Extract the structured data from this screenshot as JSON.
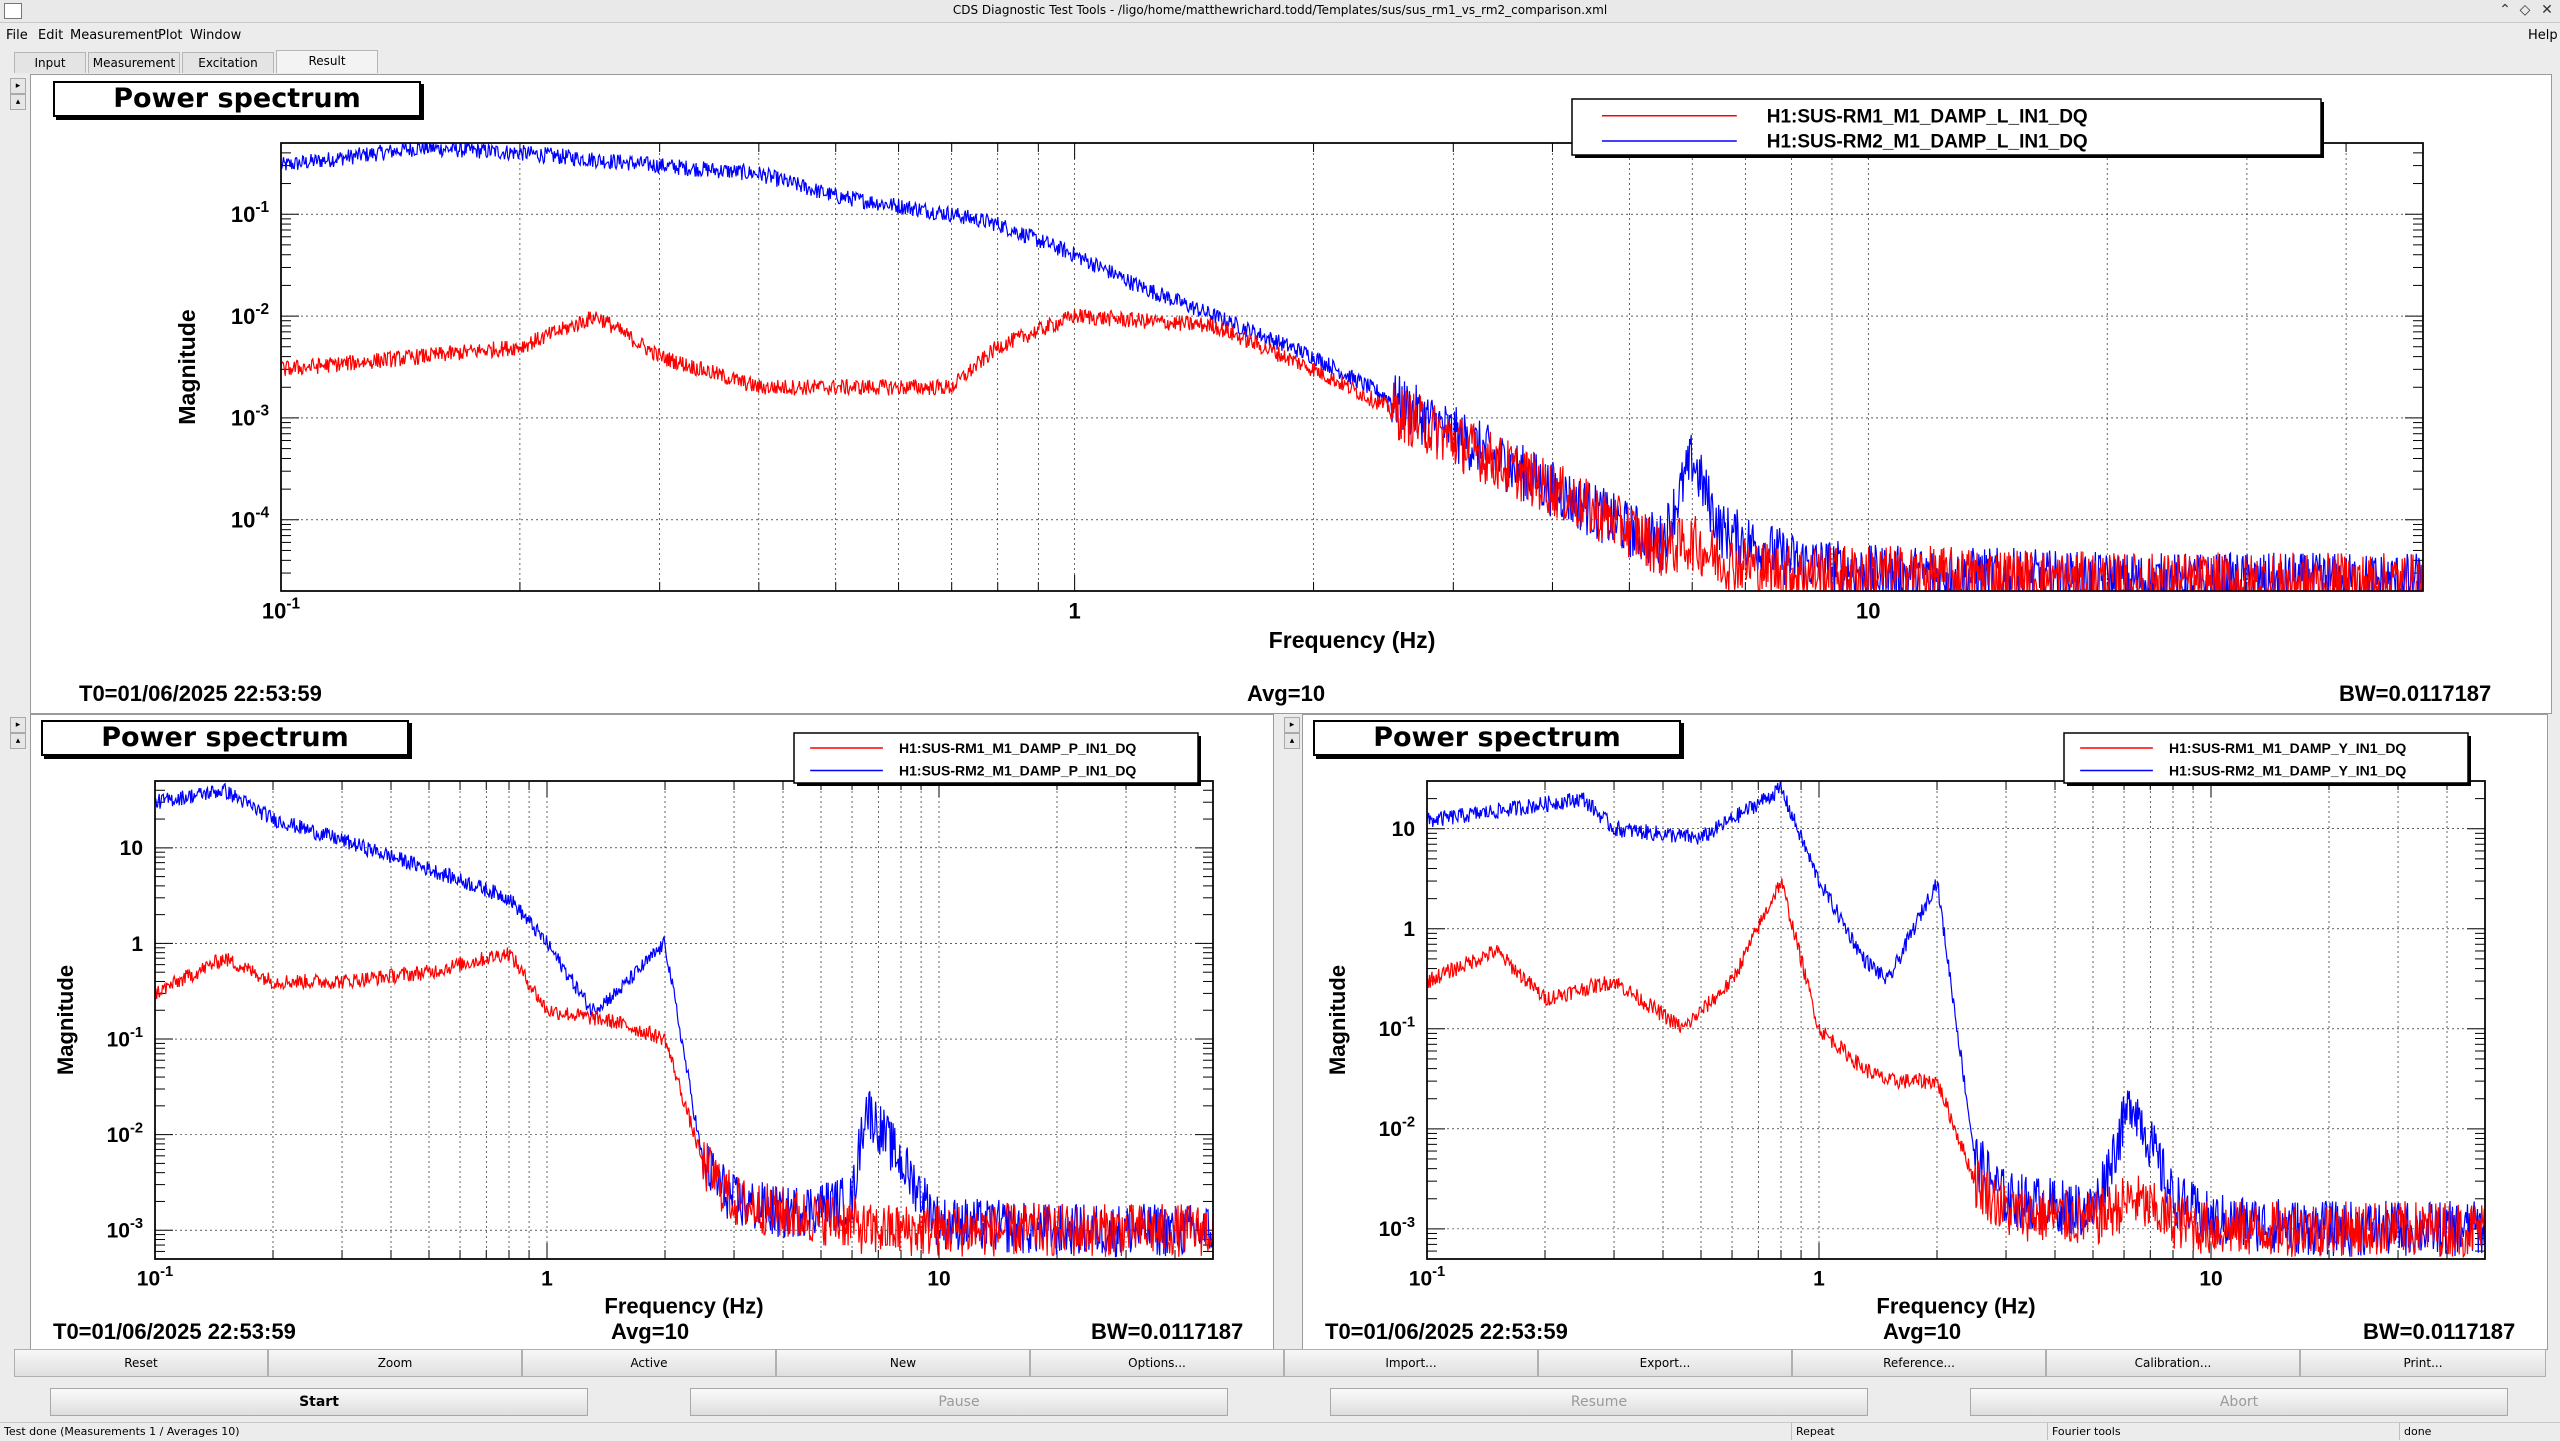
{
  "window": {
    "title": "CDS Diagnostic Test Tools - /ligo/home/matthewrichard.todd/Templates/sus/sus_rm1_vs_rm2_comparison.xml",
    "help": "Help"
  },
  "menu": [
    {
      "label": "File"
    },
    {
      "label": "Edit"
    },
    {
      "label": "Measurement"
    },
    {
      "label": "Plot"
    },
    {
      "label": "Window"
    }
  ],
  "tabs": [
    {
      "label": "Input"
    },
    {
      "label": "Measurement"
    },
    {
      "label": "Excitation"
    },
    {
      "label": "Result"
    }
  ],
  "plots": {
    "top": {
      "title": "Power spectrum",
      "ylabel": "Magnitude",
      "xlabel": "Frequency (Hz)",
      "t0": "T0=01/06/2025 22:53:59",
      "avg": "Avg=10",
      "bw": "BW=0.0117187",
      "yticks": [
        "10^-4",
        "10^-3",
        "10^-2",
        "10^-1"
      ],
      "xticks": [
        "10^-1",
        "1",
        "10"
      ],
      "legend": [
        {
          "name": "H1:SUS-RM1_M1_DAMP_L_IN1_DQ",
          "color": "#ff0000"
        },
        {
          "name": "H1:SUS-RM2_M1_DAMP_L_IN1_DQ",
          "color": "#0000ff"
        }
      ]
    },
    "left": {
      "title": "Power spectrum",
      "ylabel": "Magnitude",
      "xlabel": "Frequency (Hz)",
      "t0": "T0=01/06/2025 22:53:59",
      "avg": "Avg=10",
      "bw": "BW=0.0117187",
      "yticks": [
        "10^-3",
        "10^-2",
        "10^-1",
        "1",
        "10"
      ],
      "xticks": [
        "10^-1",
        "1",
        "10"
      ],
      "legend": [
        {
          "name": "H1:SUS-RM1_M1_DAMP_P_IN1_DQ",
          "color": "#ff0000"
        },
        {
          "name": "H1:SUS-RM2_M1_DAMP_P_IN1_DQ",
          "color": "#0000ff"
        }
      ]
    },
    "right": {
      "title": "Power spectrum",
      "ylabel": "Magnitude",
      "xlabel": "Frequency (Hz)",
      "t0": "T0=01/06/2025 22:53:59",
      "avg": "Avg=10",
      "bw": "BW=0.0117187",
      "yticks": [
        "10^-3",
        "10^-2",
        "10^-1",
        "1",
        "10"
      ],
      "xticks": [
        "10^-1",
        "1",
        "10"
      ],
      "legend": [
        {
          "name": "H1:SUS-RM1_M1_DAMP_Y_IN1_DQ",
          "color": "#ff0000"
        },
        {
          "name": "H1:SUS-RM2_M1_DAMP_Y_IN1_DQ",
          "color": "#0000ff"
        }
      ]
    }
  },
  "chart_data": [
    {
      "type": "line",
      "title": "Power spectrum",
      "xlabel": "Frequency (Hz)",
      "ylabel": "Magnitude",
      "xscale": "log",
      "yscale": "log",
      "xlim": [
        0.1,
        50
      ],
      "ylim": [
        2e-05,
        0.5
      ],
      "grid": true,
      "legend": "top-right",
      "series": [
        {
          "name": "H1:SUS-RM1_M1_DAMP_L_IN1_DQ",
          "color": "#ff0000",
          "x": [
            0.1,
            0.15,
            0.2,
            0.25,
            0.3,
            0.4,
            0.5,
            0.7,
            0.8,
            1,
            1.5,
            2,
            3,
            4,
            5,
            5.5,
            6,
            6.5,
            8,
            10,
            15,
            20,
            30,
            50
          ],
          "y": [
            0.003,
            0.004,
            0.005,
            0.01,
            0.004,
            0.002,
            0.002,
            0.002,
            0.005,
            0.01,
            0.008,
            0.003,
            0.0006,
            0.0002,
            8e-05,
            5e-05,
            6e-05,
            4e-05,
            3e-05,
            3e-05,
            2.8e-05,
            2.5e-05,
            2.5e-05,
            2.5e-05
          ]
        },
        {
          "name": "H1:SUS-RM2_M1_DAMP_L_IN1_DQ",
          "color": "#0000ff",
          "x": [
            0.1,
            0.15,
            0.2,
            0.3,
            0.4,
            0.5,
            0.7,
            0.8,
            1,
            1.2,
            1.5,
            2,
            3,
            4,
            5,
            5.5,
            6,
            6.5,
            8,
            10,
            15,
            20,
            30,
            50
          ],
          "y": [
            0.3,
            0.45,
            0.4,
            0.3,
            0.25,
            0.15,
            0.1,
            0.08,
            0.04,
            0.02,
            0.01,
            0.004,
            0.0007,
            0.0002,
            8e-05,
            6e-05,
            0.0004,
            8e-05,
            4e-05,
            3e-05,
            2.8e-05,
            2.5e-05,
            2.5e-05,
            2.5e-05
          ]
        }
      ]
    },
    {
      "type": "line",
      "title": "Power spectrum",
      "xlabel": "Frequency (Hz)",
      "ylabel": "Magnitude",
      "xscale": "log",
      "yscale": "log",
      "xlim": [
        0.1,
        50
      ],
      "ylim": [
        0.0005,
        50
      ],
      "grid": true,
      "legend": "top-right",
      "series": [
        {
          "name": "H1:SUS-RM1_M1_DAMP_P_IN1_DQ",
          "color": "#ff0000",
          "x": [
            0.1,
            0.15,
            0.2,
            0.3,
            0.5,
            0.8,
            1,
            1.5,
            2,
            2.5,
            3,
            4,
            6,
            6.5,
            10,
            20,
            50
          ],
          "y": [
            0.3,
            0.7,
            0.4,
            0.4,
            0.5,
            0.8,
            0.2,
            0.15,
            0.1,
            0.005,
            0.002,
            0.0015,
            0.0012,
            0.001,
            0.001,
            0.001,
            0.001
          ]
        },
        {
          "name": "H1:SUS-RM2_M1_DAMP_P_IN1_DQ",
          "color": "#0000ff",
          "x": [
            0.1,
            0.15,
            0.2,
            0.3,
            0.5,
            0.8,
            1,
            1.3,
            1.5,
            2,
            2.5,
            3,
            4,
            6,
            6.5,
            10,
            20,
            50
          ],
          "y": [
            30,
            40,
            20,
            12,
            6,
            3,
            1,
            0.2,
            0.3,
            1,
            0.005,
            0.002,
            0.0015,
            0.002,
            0.02,
            0.0012,
            0.001,
            0.001
          ]
        }
      ]
    },
    {
      "type": "line",
      "title": "Power spectrum",
      "xlabel": "Frequency (Hz)",
      "ylabel": "Magnitude",
      "xscale": "log",
      "yscale": "log",
      "xlim": [
        0.1,
        50
      ],
      "ylim": [
        0.0005,
        30
      ],
      "grid": true,
      "legend": "top-right",
      "series": [
        {
          "name": "H1:SUS-RM1_M1_DAMP_Y_IN1_DQ",
          "color": "#ff0000",
          "x": [
            0.1,
            0.15,
            0.2,
            0.3,
            0.45,
            0.6,
            0.8,
            1,
            1.3,
            1.5,
            2,
            2.5,
            3,
            5,
            6.3,
            8,
            10,
            20,
            50
          ],
          "y": [
            0.3,
            0.6,
            0.2,
            0.3,
            0.1,
            0.3,
            3,
            0.1,
            0.04,
            0.03,
            0.03,
            0.003,
            0.0015,
            0.0012,
            0.002,
            0.0012,
            0.001,
            0.001,
            0.001
          ]
        },
        {
          "name": "H1:SUS-RM2_M1_DAMP_Y_IN1_DQ",
          "color": "#0000ff",
          "x": [
            0.1,
            0.15,
            0.25,
            0.3,
            0.5,
            0.8,
            1,
            1.3,
            1.5,
            2,
            2.5,
            3,
            5,
            6.3,
            8,
            10,
            20,
            50
          ],
          "y": [
            12,
            15,
            20,
            10,
            8,
            25,
            3,
            0.5,
            0.3,
            3,
            0.005,
            0.002,
            0.0015,
            0.02,
            0.002,
            0.0012,
            0.001,
            0.001
          ]
        }
      ]
    }
  ],
  "bottom_buttons": [
    {
      "label": "Reset"
    },
    {
      "label": "Zoom"
    },
    {
      "label": "Active"
    },
    {
      "label": "New"
    },
    {
      "label": "Options..."
    },
    {
      "label": "Import..."
    },
    {
      "label": "Export..."
    },
    {
      "label": "Reference..."
    },
    {
      "label": "Calibration..."
    },
    {
      "label": "Print..."
    }
  ],
  "controls": [
    {
      "label": "Start",
      "enabled": true
    },
    {
      "label": "Pause",
      "enabled": false
    },
    {
      "label": "Resume",
      "enabled": false
    },
    {
      "label": "Abort",
      "enabled": false
    }
  ],
  "status": {
    "message": "Test done (Measurements 1 / Averages 10)",
    "repeat": "Repeat",
    "fourier": "Fourier tools",
    "state": "done"
  }
}
